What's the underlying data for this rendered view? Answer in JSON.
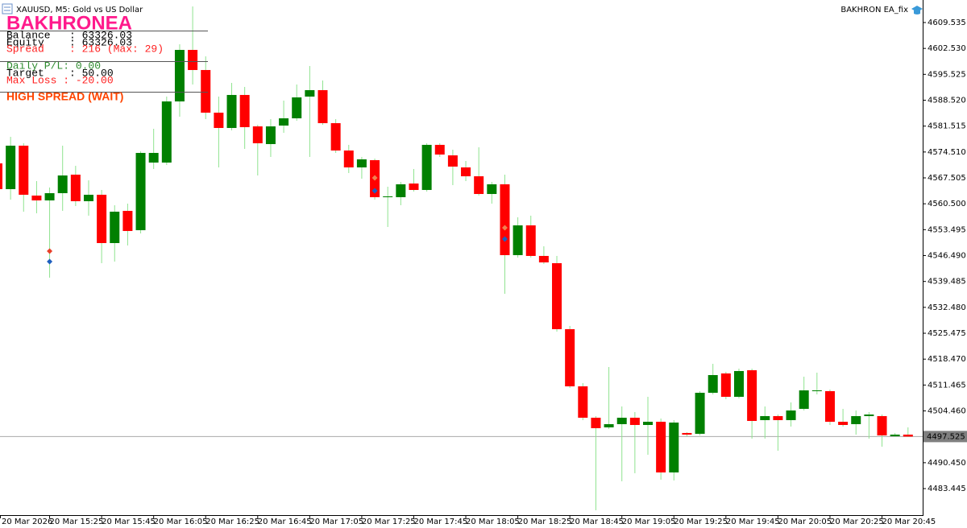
{
  "chart_data": {
    "type": "candlestick",
    "header": "XAUUSD, M5:  Gold vs US Dollar",
    "expert": "BAKHRON EA_fix",
    "categories": [
      "20 Mar 2026",
      null,
      null,
      null,
      "20 Mar 15:25",
      null,
      null,
      null,
      "20 Mar 15:45",
      null,
      null,
      null,
      "20 Mar 16:05",
      null,
      null,
      null,
      "20 Mar 16:25",
      null,
      null,
      null,
      "20 Mar 16:45",
      null,
      null,
      null,
      "20 Mar 17:05",
      null,
      null,
      null,
      "20 Mar 17:25",
      null,
      null,
      null,
      "20 Mar 17:45",
      null,
      null,
      null,
      "20 Mar 18:05",
      null,
      null,
      null,
      "20 Mar 18:25",
      null,
      null,
      null,
      "20 Mar 18:45",
      null,
      null,
      null,
      "20 Mar 19:05",
      null,
      null,
      null,
      "20 Mar 19:25",
      null,
      null,
      null,
      "20 Mar 19:45",
      null,
      null,
      null,
      "20 Mar 20:05",
      null,
      null,
      null,
      "20 Mar 20:25",
      null,
      null,
      null,
      "20 Mar 20:45",
      null,
      null
    ],
    "open": [
      4571.43,
      4564.46,
      4576.22,
      4562.72,
      4561.41,
      4563.37,
      4568.38,
      4561.2,
      4562.94,
      4549.87,
      4558.58,
      4553.36,
      4571.65,
      4571.65,
      4588.19,
      4602.13,
      4596.69,
      4585.15,
      4581.01,
      4589.94,
      4581.44,
      4576.65,
      4581.66,
      4583.62,
      4589.5,
      4591.24,
      4582.31,
      4574.91,
      4570.34,
      4572.3,
      4562.28,
      4562.28,
      4565.98,
      4564.24,
      4576.44,
      4573.6,
      4570.34,
      4567.94,
      4563.15,
      4565.77,
      4546.61,
      4554.66,
      4546.39,
      4544.43,
      4526.58,
      4511.11,
      4502.62,
      4500.01,
      4500.88,
      4502.62,
      4500.66,
      4501.53,
      4487.82,
      4498.49,
      4498.27,
      4509.37,
      4514.6,
      4508.28,
      4515.47,
      4501.97,
      4503.06,
      4501.97,
      4505.02,
      4509.81,
      4509.81,
      4501.53,
      4500.88,
      4503.06,
      4503.06,
      4497.62,
      4498.05
    ],
    "high": [
      4573.17,
      4578.61,
      4576.87,
      4566.64,
      4564.9,
      4576.22,
      4570.77,
      4566.85,
      4564.24,
      4560.11,
      4560.54,
      4574.69,
      4580.79,
      4589.5,
      4603.65,
      4613.89,
      4600.39,
      4589.5,
      4593.2,
      4592.11,
      4581.88,
      4583.4,
      4588.41,
      4592.77,
      4597.77,
      4593.86,
      4583.4,
      4576.44,
      4573.17,
      4572.73,
      4565.11,
      4566.42,
      4569.91,
      4576.87,
      4576.87,
      4575.13,
      4572.08,
      4575.78,
      4566.42,
      4568.38,
      4556.84,
      4557.28,
      4549.0,
      4546.39,
      4527.45,
      4511.98,
      4503.06,
      4516.34,
      4505.67,
      4504.15,
      4508.28,
      4502.4,
      4501.97,
      4498.71,
      4509.81,
      4517.2,
      4515.03,
      4515.9,
      4515.9,
      4505.67,
      4503.49,
      4506.76,
      4513.72,
      4514.81,
      4510.24,
      4505.02,
      4504.58,
      4504.15,
      4503.49,
      4498.49,
      4500.01
    ],
    "low": [
      4563.37,
      4561.63,
      4558.36,
      4557.93,
      4540.51,
      4558.58,
      4559.89,
      4557.28,
      4544.43,
      4544.86,
      4549.22,
      4552.48,
      4569.91,
      4570.99,
      4584.06,
      4592.77,
      4583.4,
      4570.34,
      4580.36,
      4575.35,
      4568.16,
      4573.17,
      4579.7,
      4582.97,
      4573.17,
      4581.88,
      4574.26,
      4568.82,
      4567.29,
      4561.63,
      4554.23,
      4560.11,
      4563.81,
      4563.81,
      4573.17,
      4565.55,
      4566.64,
      4562.72,
      4560.54,
      4536.16,
      4545.95,
      4545.95,
      4544.21,
      4525.92,
      4510.68,
      4501.97,
      4477.59,
      4499.58,
      4485.43,
      4487.6,
      4492.61,
      4485.86,
      4485.65,
      4497.62,
      4497.84,
      4508.93,
      4507.63,
      4507.85,
      4496.97,
      4496.97,
      4493.7,
      4500.23,
      4504.58,
      4508.93,
      4500.66,
      4500.23,
      4498.05,
      4496.97,
      4494.79,
      4497.4,
      4497.4
    ],
    "close": [
      4564.46,
      4576.22,
      4562.94,
      4561.41,
      4563.37,
      4568.16,
      4561.2,
      4562.94,
      4549.87,
      4558.36,
      4553.14,
      4574.26,
      4574.26,
      4588.19,
      4602.13,
      4596.69,
      4585.15,
      4581.01,
      4589.94,
      4581.23,
      4576.87,
      4581.44,
      4583.62,
      4589.28,
      4591.24,
      4582.31,
      4574.91,
      4570.34,
      4572.52,
      4562.28,
      4562.5,
      4565.77,
      4564.24,
      4576.44,
      4573.82,
      4570.56,
      4567.94,
      4563.15,
      4565.77,
      4546.61,
      4554.66,
      4546.39,
      4544.64,
      4526.58,
      4511.11,
      4502.62,
      4499.79,
      4500.88,
      4502.62,
      4500.66,
      4501.53,
      4487.82,
      4501.31,
      4498.05,
      4509.37,
      4514.16,
      4508.28,
      4515.25,
      4501.75,
      4503.06,
      4501.97,
      4504.58,
      4510.02,
      4510.02,
      4501.53,
      4500.66,
      4503.06,
      4503.49,
      4497.84,
      4498.05,
      4497.525
    ],
    "up_color": "#008000",
    "down_color": "#ff0000",
    "wick_color": "#8fe38f",
    "markers": [
      {
        "x": 4,
        "value": 4547.69,
        "color": "#e8402a"
      },
      {
        "x": 4,
        "value": 4544.86,
        "color": "#1f5fbf"
      },
      {
        "x": 29,
        "value": 4567.51,
        "color": "#f08050"
      },
      {
        "x": 29,
        "value": 4564.02,
        "color": "#1f5fbf"
      },
      {
        "x": 39,
        "value": 4554.01,
        "color": "#f08050"
      },
      {
        "x": 39,
        "value": 4550.96,
        "color": "#1f5fbf"
      }
    ],
    "current_price": {
      "value": 4497.525,
      "label": "4497.525"
    },
    "ylim": [
      4476.27,
      4615.63
    ],
    "yticks": [
      4609.535,
      {
        "value": 4602.53,
        "label": "4602.530"
      },
      4595.525,
      {
        "value": 4588.52,
        "label": "4588.520"
      },
      4581.515,
      {
        "value": 4574.51,
        "label": "4574.510"
      },
      4567.505,
      {
        "value": 4560.5,
        "label": "4560.500"
      },
      4553.495,
      {
        "value": 4546.49,
        "label": "4546.490"
      },
      4539.485,
      {
        "value": 4532.48,
        "label": "4532.480"
      },
      4525.475,
      {
        "value": 4518.47,
        "label": "4518.470"
      },
      4511.465,
      {
        "value": 4504.46,
        "label": "4504.460"
      },
      {
        "value": 4490.45,
        "label": "4490.450"
      },
      4483.445
    ],
    "panel": {
      "title": "BAKHRONEA",
      "title_color": "#ff1a8c",
      "lines": [
        {
          "text": "Balance   : 63326.03",
          "color": "#000000"
        },
        {
          "text": "Equity    : 63326.03",
          "color": "#000000"
        },
        {
          "text": "Spread    : 216 (Max: 29)",
          "color": "#ff2020"
        },
        {
          "text": "Daily P/L: 0.00",
          "color": "#2e8b2e"
        },
        {
          "text": "Target    : 50.00",
          "color": "#000000"
        },
        {
          "text": "Max Loss : -20.00",
          "color": "#ff2020"
        }
      ],
      "status": "HIGH SPREAD (WAIT)",
      "status_color": "#ff4500"
    }
  }
}
